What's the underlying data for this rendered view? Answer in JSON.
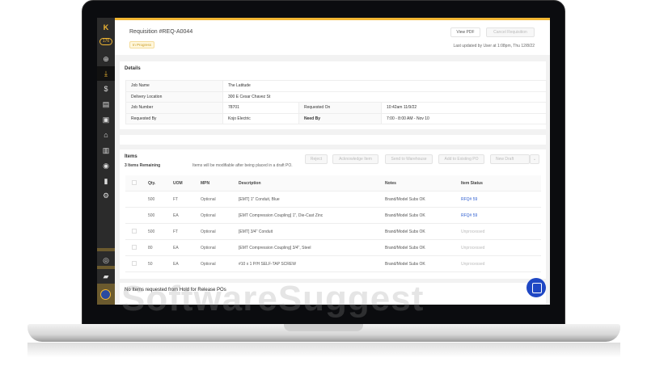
{
  "sidebar": {
    "badge": "176",
    "logo_icon": "k-logo-icon",
    "items": [
      "plus-circle-icon",
      "download-icon",
      "dollar-icon",
      "documents-icon",
      "save-icon",
      "home-icon",
      "building-icon",
      "location-icon",
      "chart-icon",
      "gear-icon",
      "user-icon",
      "chat-icon",
      "company-avatar"
    ]
  },
  "header": {
    "title": "Requisition #REQ-A0044",
    "status": "In Progress",
    "view_pdf": "View PDF",
    "cancel": "Cancel Requisition",
    "last_updated": "Last updated by User at 1:08pm, Thu 12/8/22"
  },
  "details": {
    "title": "Details",
    "job_name_label": "Job Name",
    "job_name": "The Latitude",
    "delivery_label": "Delivery Location",
    "delivery": "300 E Cesar Chavez St",
    "job_number_label": "Job Number",
    "job_number": "78701",
    "requested_on_label": "Requested On",
    "requested_on": "10:42am 11/9/22",
    "requested_by_label": "Requested By",
    "requested_by": "Kojo Electric",
    "need_by_label": "Need By",
    "need_by": "7:00 - 8:00 AM - Nov 10"
  },
  "items": {
    "title": "Items",
    "remaining": "3 Items Remaining",
    "note": "Items will be modifiable after being placed in a draft PO.",
    "actions": {
      "reject": "Reject",
      "acknowledge": "Acknowledge Item",
      "warehouse": "Send to Warehouse",
      "add_po": "Add to Existing PO",
      "new_draft": "New Draft"
    },
    "columns": {
      "qty": "Qty.",
      "uom": "UOM",
      "mpn": "MPN",
      "desc": "Description",
      "notes": "Notes",
      "status": "Item Status"
    },
    "rows": [
      {
        "qty": "500",
        "uom": "FT",
        "mpn": "Optional",
        "desc": "[EMT] 1\" Conduit, Blue",
        "notes": "Brand/Model Subs OK",
        "status": "RFQ# 59",
        "checkbox": false
      },
      {
        "qty": "500",
        "uom": "EA",
        "mpn": "Optional",
        "desc": "[EMT Compression Coupling] 1\", Die-Cast Zinc",
        "notes": "Brand/Model Subs OK",
        "status": "RFQ# 59",
        "checkbox": false
      },
      {
        "qty": "500",
        "uom": "FT",
        "mpn": "Optional",
        "desc": "[EMT] 3/4\" Conduit",
        "notes": "Brand/Model Subs OK",
        "status": "Unprocessed",
        "checkbox": true
      },
      {
        "qty": "80",
        "uom": "EA",
        "mpn": "Optional",
        "desc": "[EMT Compression Coupling] 3/4\", Steel",
        "notes": "Brand/Model Subs OK",
        "status": "Unprocessed",
        "checkbox": true
      },
      {
        "qty": "50",
        "uom": "EA",
        "mpn": "Optional",
        "desc": "#10 x 1 P/H SELF-TAP SCREW",
        "notes": "Brand/Model Subs OK",
        "status": "Unprocessed",
        "checkbox": true
      }
    ]
  },
  "hold": {
    "text": "No Items requested from Hold for Release POs"
  },
  "watermark": "SoftwareSuggest",
  "colors": {
    "accent": "#f2b733",
    "link": "#2f5fd0",
    "chat": "#1f47c4"
  }
}
